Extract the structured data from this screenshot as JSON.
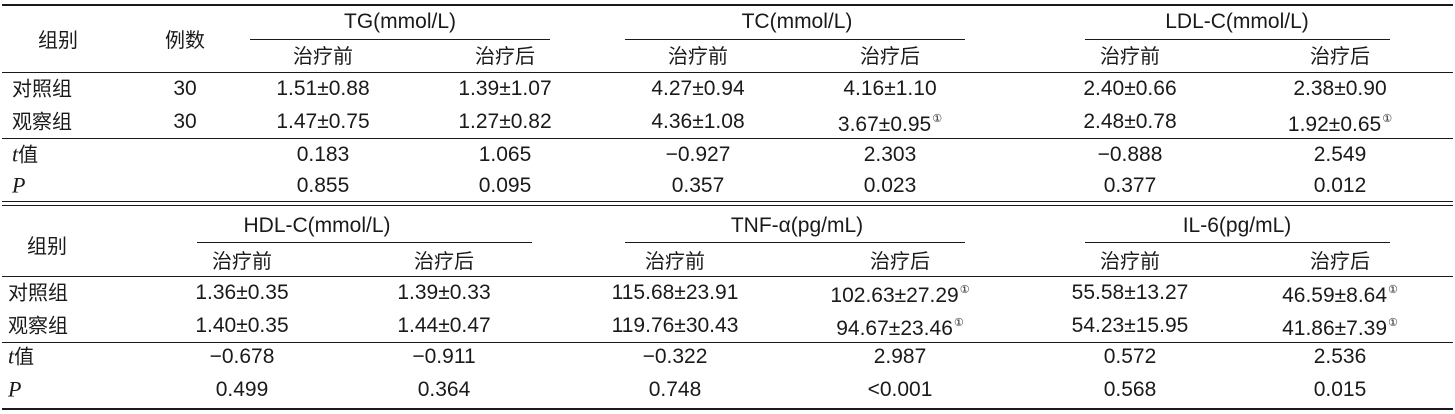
{
  "table1": {
    "header": {
      "group": "组别",
      "count": "例数",
      "metrics": [
        "TG(mmol/L)",
        "TC(mmol/L)",
        "LDL-C(mmol/L)"
      ],
      "before": "治疗前",
      "after": "治疗后"
    },
    "rows": [
      {
        "label": "对照组",
        "n": "30",
        "cells": [
          "1.51±0.88",
          "1.39±1.07",
          "4.27±0.94",
          "4.16±1.10",
          "2.40±0.66",
          "2.38±0.90"
        ],
        "marks": [
          "",
          "",
          "",
          "",
          "",
          ""
        ]
      },
      {
        "label": "观察组",
        "n": "30",
        "cells": [
          "1.47±0.75",
          "1.27±0.82",
          "4.36±1.08",
          "3.67±0.95",
          "2.48±0.78",
          "1.92±0.65"
        ],
        "marks": [
          "",
          "",
          "",
          "①",
          "",
          "①"
        ]
      },
      {
        "label": "值",
        "label_italic": "t",
        "n": "",
        "cells": [
          "0.183",
          "1.065",
          "−0.927",
          "2.303",
          "−0.888",
          "2.549"
        ],
        "marks": [
          "",
          "",
          "",
          "",
          "",
          ""
        ]
      },
      {
        "label": "",
        "label_italic": "P",
        "n": "",
        "cells": [
          "0.855",
          "0.095",
          "0.357",
          "0.023",
          "0.377",
          "0.012"
        ],
        "marks": [
          "",
          "",
          "",
          "",
          "",
          ""
        ]
      }
    ]
  },
  "table2": {
    "header": {
      "group": "组别",
      "metrics": [
        "HDL-C(mmol/L)",
        "TNF-α(pg/mL)",
        "IL-6(pg/mL)"
      ],
      "before": "治疗前",
      "after": "治疗后"
    },
    "rows": [
      {
        "label": "对照组",
        "cells": [
          "1.36±0.35",
          "1.39±0.33",
          "115.68±23.91",
          "102.63±27.29",
          "55.58±13.27",
          "46.59±8.64"
        ],
        "marks": [
          "",
          "",
          "",
          "①",
          "",
          "①"
        ]
      },
      {
        "label": "观察组",
        "cells": [
          "1.40±0.35",
          "1.44±0.47",
          "119.76±30.43",
          "94.67±23.46",
          "54.23±15.95",
          "41.86±7.39"
        ],
        "marks": [
          "",
          "",
          "",
          "①",
          "",
          "①"
        ]
      },
      {
        "label": "值",
        "label_italic": "t",
        "cells": [
          "−0.678",
          "−0.911",
          "−0.322",
          "2.987",
          "0.572",
          "2.536"
        ],
        "marks": [
          "",
          "",
          "",
          "",
          "",
          ""
        ]
      },
      {
        "label": "",
        "label_italic": "P",
        "cells": [
          "0.499",
          "0.364",
          "0.748",
          "<0.001",
          "0.568",
          "0.015"
        ],
        "marks": [
          "",
          "",
          "",
          "",
          "",
          ""
        ]
      }
    ]
  }
}
